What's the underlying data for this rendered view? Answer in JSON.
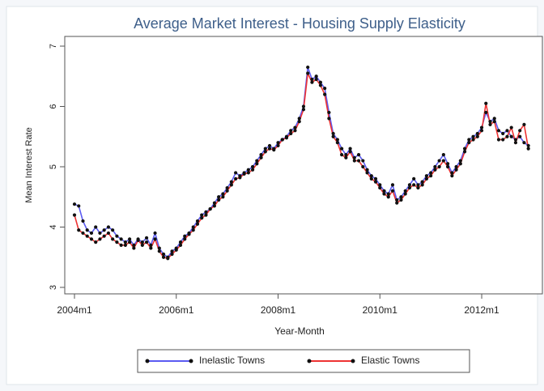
{
  "chart_data": {
    "type": "line",
    "title": "Average Market Interest - Housing Supply Elasticity",
    "x_label": "Year-Month",
    "y_label": "Mean Interest Rate",
    "categories": [
      "2004m1",
      null,
      null,
      null,
      null,
      null,
      null,
      null,
      null,
      null,
      null,
      null,
      null,
      null,
      null,
      null,
      null,
      null,
      null,
      null,
      null,
      null,
      null,
      null,
      "2006m1",
      null,
      null,
      null,
      null,
      null,
      null,
      null,
      null,
      null,
      null,
      null,
      null,
      null,
      null,
      null,
      null,
      null,
      null,
      null,
      null,
      null,
      null,
      null,
      "2008m1",
      null,
      null,
      null,
      null,
      null,
      null,
      null,
      null,
      null,
      null,
      null,
      null,
      null,
      null,
      null,
      null,
      null,
      null,
      null,
      null,
      null,
      null,
      null,
      "2010m1",
      null,
      null,
      null,
      null,
      null,
      null,
      null,
      null,
      null,
      null,
      null,
      null,
      null,
      null,
      null,
      null,
      null,
      null,
      null,
      null,
      null,
      null,
      null,
      "2012m1",
      null,
      null,
      null,
      null,
      null,
      null,
      null,
      null,
      null,
      null,
      null
    ],
    "series": [
      {
        "name": "Inelastic Towns",
        "color": "#5b5bf2",
        "values": [
          4.38,
          4.35,
          4.1,
          3.95,
          3.9,
          4.0,
          3.9,
          3.95,
          4.0,
          3.95,
          3.85,
          3.8,
          3.75,
          3.8,
          3.7,
          3.8,
          3.75,
          3.82,
          3.7,
          3.9,
          3.65,
          3.55,
          3.5,
          3.6,
          3.65,
          3.75,
          3.85,
          3.9,
          4.0,
          4.1,
          4.2,
          4.25,
          4.3,
          4.4,
          4.5,
          4.55,
          4.65,
          4.75,
          4.9,
          4.85,
          4.9,
          4.95,
          5.0,
          5.1,
          5.2,
          5.3,
          5.35,
          5.3,
          5.4,
          5.45,
          5.5,
          5.6,
          5.65,
          5.8,
          6.0,
          6.65,
          6.45,
          6.5,
          6.4,
          6.3,
          5.9,
          5.55,
          5.45,
          5.3,
          5.2,
          5.3,
          5.15,
          5.2,
          5.1,
          4.95,
          4.85,
          4.8,
          4.7,
          4.6,
          4.55,
          4.7,
          4.45,
          4.5,
          4.6,
          4.7,
          4.8,
          4.7,
          4.75,
          4.85,
          4.9,
          5.0,
          5.1,
          5.2,
          5.05,
          4.9,
          5.0,
          5.1,
          5.3,
          5.45,
          5.5,
          5.55,
          5.65,
          5.9,
          5.75,
          5.8,
          5.6,
          5.55,
          5.6,
          5.5,
          5.45,
          5.5,
          5.4,
          5.35
        ]
      },
      {
        "name": "Elastic Towns",
        "color": "#ee3333",
        "values": [
          4.2,
          3.95,
          3.9,
          3.85,
          3.8,
          3.75,
          3.8,
          3.85,
          3.9,
          3.8,
          3.75,
          3.7,
          3.7,
          3.75,
          3.65,
          3.78,
          3.7,
          3.75,
          3.65,
          3.8,
          3.6,
          3.5,
          3.48,
          3.55,
          3.62,
          3.7,
          3.8,
          3.88,
          3.95,
          4.05,
          4.15,
          4.2,
          4.3,
          4.35,
          4.45,
          4.5,
          4.6,
          4.7,
          4.8,
          4.82,
          4.88,
          4.9,
          4.95,
          5.05,
          5.15,
          5.25,
          5.3,
          5.28,
          5.35,
          5.45,
          5.48,
          5.55,
          5.6,
          5.75,
          5.95,
          6.55,
          6.4,
          6.45,
          6.35,
          6.2,
          5.8,
          5.5,
          5.4,
          5.2,
          5.15,
          5.25,
          5.1,
          5.1,
          5.0,
          4.9,
          4.8,
          4.75,
          4.65,
          4.55,
          4.5,
          4.6,
          4.4,
          4.45,
          4.55,
          4.65,
          4.7,
          4.65,
          4.7,
          4.8,
          4.85,
          4.95,
          5.0,
          5.1,
          5.0,
          4.85,
          4.95,
          5.05,
          5.25,
          5.4,
          5.45,
          5.5,
          5.6,
          6.05,
          5.7,
          5.75,
          5.45,
          5.45,
          5.5,
          5.65,
          5.4,
          5.6,
          5.7,
          5.3
        ]
      }
    ],
    "ylim": [
      3,
      7
    ],
    "yticks": [
      3,
      4,
      5,
      6,
      7
    ],
    "grid": false,
    "legend": "bottom"
  }
}
